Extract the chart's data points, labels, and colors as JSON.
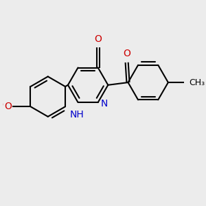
{
  "bg_color": "#ececec",
  "bond_color": "#000000",
  "bond_width": 1.5,
  "N_color": "#0000cc",
  "O_color": "#cc0000",
  "font_size": 10,
  "fig_size": [
    3.0,
    3.0
  ],
  "dpi": 100,
  "xlim": [
    -2.8,
    4.2
  ],
  "ylim": [
    -3.2,
    2.4
  ]
}
